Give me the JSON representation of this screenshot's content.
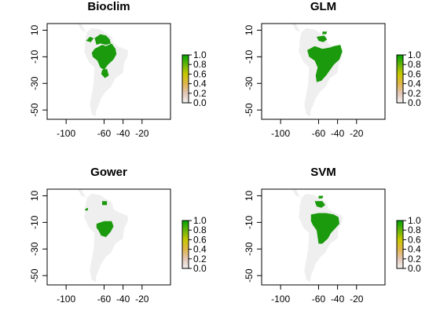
{
  "figure": {
    "panels": [
      {
        "id": "bioclim",
        "title": "Bioclim"
      },
      {
        "id": "glm",
        "title": "GLM"
      },
      {
        "id": "gower",
        "title": "Gower"
      },
      {
        "id": "svm",
        "title": "SVM"
      }
    ],
    "x_ticks": [
      "-100",
      "-60",
      "-40",
      "-20"
    ],
    "y_ticks": [
      "10",
      "-10",
      "-30",
      "-50"
    ],
    "legend_ticks": [
      "1.0",
      "0.8",
      "0.6",
      "0.4",
      "0.2",
      "0.0"
    ]
  },
  "colors": {
    "land": "#efefef",
    "prediction": "#1a9a0c",
    "ramp": [
      "#f2f2f2",
      "#e3c5b6",
      "#e0b64a",
      "#c8c800",
      "#66b40a",
      "#00a400"
    ]
  },
  "chart_data": {
    "type": "map",
    "xlim": [
      -120,
      10
    ],
    "ylim": [
      -57,
      15
    ],
    "x_ticks": [
      -100,
      -60,
      -40,
      -20
    ],
    "y_ticks": [
      10,
      -10,
      -30,
      -50
    ],
    "legend": {
      "range": [
        0,
        1
      ],
      "ticks": [
        1.0,
        0.8,
        0.6,
        0.4,
        0.2,
        0.0
      ]
    },
    "land": [
      [
        -78,
        8.5
      ],
      [
        -73,
        11.5
      ],
      [
        -64,
        10.5
      ],
      [
        -60,
        8.5
      ],
      [
        -52,
        5
      ],
      [
        -50,
        0
      ],
      [
        -44,
        -2.5
      ],
      [
        -35,
        -5
      ],
      [
        -35,
        -9
      ],
      [
        -39,
        -15
      ],
      [
        -40,
        -22
      ],
      [
        -48,
        -26
      ],
      [
        -53,
        -33
      ],
      [
        -58,
        -36
      ],
      [
        -63,
        -41
      ],
      [
        -65,
        -45
      ],
      [
        -68,
        -50
      ],
      [
        -69,
        -55
      ],
      [
        -73,
        -53
      ],
      [
        -75,
        -46
      ],
      [
        -73,
        -38
      ],
      [
        -71,
        -30
      ],
      [
        -70,
        -18
      ],
      [
        -76,
        -14
      ],
      [
        -81,
        -6
      ],
      [
        -80,
        -2
      ],
      [
        -80,
        2
      ],
      [
        -78,
        8.5
      ]
    ],
    "central_america": [
      [
        -78,
        8.5
      ],
      [
        -84,
        10
      ],
      [
        -87,
        14
      ],
      [
        -92,
        16
      ],
      [
        -97,
        18
      ],
      [
        -105,
        20
      ],
      [
        -106,
        24
      ],
      [
        -100,
        22
      ],
      [
        -91,
        19
      ],
      [
        -87,
        21
      ],
      [
        -84,
        15
      ],
      [
        -80,
        9.5
      ]
    ],
    "predictions": {
      "bioclim": [
        [
          [
            -70,
            -4
          ],
          [
            -62,
            -1
          ],
          [
            -58,
            -2
          ],
          [
            -52,
            0
          ],
          [
            -48,
            -4
          ],
          [
            -47,
            -8
          ],
          [
            -50,
            -12
          ],
          [
            -56,
            -16
          ],
          [
            -60,
            -20
          ],
          [
            -64,
            -18
          ],
          [
            -67,
            -13
          ],
          [
            -72,
            -10
          ],
          [
            -73,
            -7
          ]
        ],
        [
          [
            -70,
            4
          ],
          [
            -64,
            7
          ],
          [
            -58,
            6
          ],
          [
            -54,
            3
          ],
          [
            -53,
            0
          ],
          [
            -58,
            -1
          ],
          [
            -64,
            0
          ],
          [
            -68,
            -1
          ]
        ],
        [
          [
            -79,
            2
          ],
          [
            -75,
            5
          ],
          [
            -71,
            4
          ],
          [
            -74,
            1
          ]
        ],
        [
          [
            -62,
            -20
          ],
          [
            -57,
            -19
          ],
          [
            -55,
            -24
          ],
          [
            -59,
            -26
          ],
          [
            -63,
            -23
          ]
        ]
      ],
      "glm": [
        [
          [
            -72,
            -5
          ],
          [
            -64,
            -2
          ],
          [
            -56,
            -4
          ],
          [
            -48,
            -3
          ],
          [
            -44,
            -2
          ],
          [
            -37,
            -1
          ],
          [
            -35,
            -6
          ],
          [
            -38,
            -12
          ],
          [
            -44,
            -16
          ],
          [
            -48,
            -20
          ],
          [
            -52,
            -24
          ],
          [
            -57,
            -28
          ],
          [
            -62,
            -29
          ],
          [
            -63,
            -24
          ],
          [
            -61,
            -18
          ],
          [
            -64,
            -13
          ],
          [
            -70,
            -10
          ]
        ],
        [
          [
            -62,
            5
          ],
          [
            -54,
            6
          ],
          [
            -51,
            3
          ],
          [
            -55,
            1
          ],
          [
            -60,
            2
          ]
        ],
        [
          [
            -56,
            9
          ],
          [
            -51,
            9
          ],
          [
            -52,
            7
          ],
          [
            -56,
            7
          ]
        ]
      ],
      "gower": [
        [
          [
            -68,
            -11
          ],
          [
            -60,
            -9
          ],
          [
            -52,
            -9
          ],
          [
            -50,
            -13
          ],
          [
            -53,
            -17
          ],
          [
            -58,
            -21
          ],
          [
            -63,
            -20
          ],
          [
            -66,
            -16
          ],
          [
            -68,
            -14
          ]
        ],
        [
          [
            -62,
            6
          ],
          [
            -57,
            6
          ],
          [
            -57,
            3
          ],
          [
            -62,
            3
          ]
        ],
        [
          [
            -80,
            0
          ],
          [
            -77,
            1
          ],
          [
            -77,
            -1
          ],
          [
            -80,
            -1
          ]
        ]
      ],
      "svm": [
        [
          [
            -68,
            -4
          ],
          [
            -60,
            -3
          ],
          [
            -52,
            -3
          ],
          [
            -44,
            -4
          ],
          [
            -39,
            -6
          ],
          [
            -38,
            -11
          ],
          [
            -43,
            -15
          ],
          [
            -47,
            -18
          ],
          [
            -50,
            -22
          ],
          [
            -56,
            -26
          ],
          [
            -60,
            -26
          ],
          [
            -61,
            -21
          ],
          [
            -62,
            -16
          ],
          [
            -66,
            -12
          ],
          [
            -68,
            -9
          ]
        ],
        [
          [
            -64,
            6
          ],
          [
            -56,
            6
          ],
          [
            -53,
            3
          ],
          [
            -57,
            1
          ],
          [
            -62,
            2
          ]
        ],
        [
          [
            -60,
            10
          ],
          [
            -55,
            10
          ],
          [
            -56,
            8
          ],
          [
            -60,
            8
          ]
        ]
      ]
    }
  }
}
